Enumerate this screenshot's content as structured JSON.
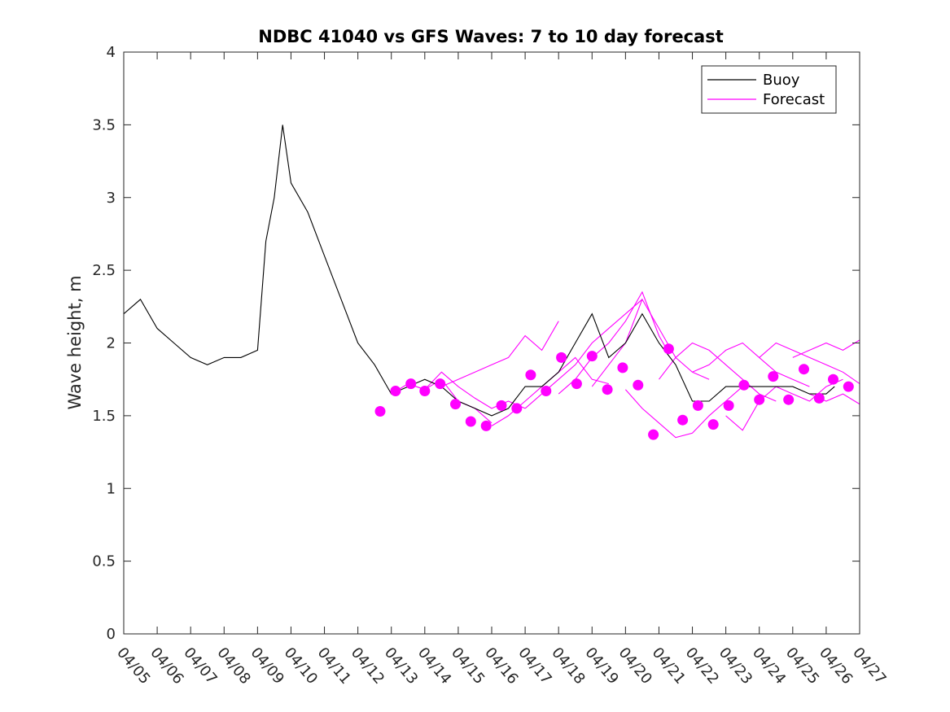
{
  "chart_data": {
    "type": "line",
    "title": "NDBC 41040 vs GFS Waves: 7 to 10 day forecast",
    "xlabel": "",
    "ylabel": "Wave height, m",
    "ylim": [
      0,
      4
    ],
    "xlim": [
      "04/05",
      "04/27"
    ],
    "x_tick_labels": [
      "04/05",
      "04/06",
      "04/07",
      "04/08",
      "04/09",
      "04/10",
      "04/11",
      "04/12",
      "04/13",
      "04/14",
      "04/15",
      "04/16",
      "04/17",
      "04/18",
      "04/19",
      "04/20",
      "04/21",
      "04/22",
      "04/23",
      "04/24",
      "04/25",
      "04/26",
      "04/27"
    ],
    "y_tick_labels": [
      "0",
      "0.5",
      "1",
      "1.5",
      "2",
      "2.5",
      "3",
      "3.5",
      "4"
    ],
    "y_ticks": [
      0,
      0.5,
      1,
      1.5,
      2,
      2.5,
      3,
      3.5,
      4
    ],
    "grid": false,
    "legend_position": "top-right",
    "colors": {
      "buoy": "#000000",
      "forecast": "#ff00ff"
    },
    "series": [
      {
        "name": "Buoy",
        "style": "line",
        "x": [
          "04/05 00:00",
          "04/05 12:00",
          "04/06 00:00",
          "04/06 12:00",
          "04/07 00:00",
          "04/07 12:00",
          "04/08 00:00",
          "04/08 12:00",
          "04/09 00:00",
          "04/09 06:00",
          "04/09 12:00",
          "04/09 18:00",
          "04/10 00:00",
          "04/10 12:00",
          "04/11 00:00",
          "04/11 12:00",
          "04/12 00:00",
          "04/12 12:00",
          "04/13 00:00",
          "04/13 12:00",
          "04/14 00:00",
          "04/14 12:00",
          "04/15 00:00",
          "04/15 12:00",
          "04/16 00:00",
          "04/16 12:00",
          "04/17 00:00",
          "04/17 12:00",
          "04/18 00:00",
          "04/18 12:00",
          "04/19 00:00",
          "04/19 12:00",
          "04/20 00:00",
          "04/20 12:00",
          "04/21 00:00",
          "04/21 12:00",
          "04/22 00:00",
          "04/22 12:00",
          "04/23 00:00",
          "04/23 12:00",
          "04/24 00:00",
          "04/24 12:00",
          "04/25 00:00",
          "04/25 12:00",
          "04/26 00:00",
          "04/26 06:00"
        ],
        "values": [
          2.2,
          2.3,
          2.1,
          2.0,
          1.9,
          1.85,
          1.9,
          1.9,
          1.95,
          2.7,
          3.0,
          3.5,
          3.1,
          2.9,
          2.6,
          2.3,
          2.0,
          1.85,
          1.65,
          1.7,
          1.75,
          1.7,
          1.6,
          1.55,
          1.5,
          1.55,
          1.7,
          1.7,
          1.8,
          2.0,
          2.2,
          1.9,
          2.0,
          2.2,
          2.0,
          1.85,
          1.6,
          1.6,
          1.7,
          1.7,
          1.7,
          1.7,
          1.7,
          1.65,
          1.65,
          1.7
        ]
      },
      {
        "name": "Forecast",
        "style": "markers",
        "x": [
          "04/12 16:00",
          "04/13 03:00",
          "04/13 14:00",
          "04/14 00:00",
          "04/14 11:00",
          "04/14 22:00",
          "04/15 09:00",
          "04/15 20:00",
          "04/16 07:00",
          "04/16 18:00",
          "04/17 04:00",
          "04/17 15:00",
          "04/18 02:00",
          "04/18 13:00",
          "04/19 00:00",
          "04/19 11:00",
          "04/19 22:00",
          "04/20 09:00",
          "04/20 20:00",
          "04/21 07:00",
          "04/21 17:00",
          "04/22 04:00",
          "04/22 15:00",
          "04/23 02:00",
          "04/23 13:00",
          "04/24 00:00",
          "04/24 10:00",
          "04/24 21:00",
          "04/25 08:00",
          "04/25 19:00",
          "04/26 05:00",
          "04/26 16:00"
        ],
        "values": [
          1.53,
          1.67,
          1.72,
          1.67,
          1.72,
          1.58,
          1.46,
          1.43,
          1.57,
          1.55,
          1.78,
          1.67,
          1.9,
          1.72,
          1.91,
          1.68,
          1.83,
          1.71,
          1.37,
          1.96,
          1.47,
          1.57,
          1.44,
          1.57,
          1.71,
          1.61,
          1.77,
          1.61,
          1.82,
          1.62,
          1.75,
          1.7
        ]
      }
    ],
    "forecast_traces": [
      {
        "x": [
          "04/13 00:00",
          "04/13 12:00",
          "04/14 00:00",
          "04/14 12:00",
          "04/15 00:00",
          "04/15 12:00",
          "04/16 00:00"
        ],
        "values": [
          1.65,
          1.72,
          1.68,
          1.75,
          1.6,
          1.55,
          1.45
        ]
      },
      {
        "x": [
          "04/13 12:00",
          "04/14 00:00",
          "04/14 12:00",
          "04/15 00:00",
          "04/15 12:00",
          "04/16 00:00",
          "04/16 12:00",
          "04/17 00:00"
        ],
        "values": [
          1.72,
          1.68,
          1.8,
          1.7,
          1.62,
          1.55,
          1.6,
          1.55
        ]
      },
      {
        "x": [
          "04/14 12:00",
          "04/15 00:00",
          "04/15 12:00",
          "04/16 00:00",
          "04/16 12:00",
          "04/17 00:00",
          "04/17 12:00",
          "04/18 00:00"
        ],
        "values": [
          1.7,
          1.75,
          1.8,
          1.85,
          1.9,
          2.05,
          1.95,
          2.15
        ]
      },
      {
        "x": [
          "04/16 00:00",
          "04/16 12:00",
          "04/17 00:00",
          "04/17 12:00",
          "04/18 00:00",
          "04/18 12:00",
          "04/19 00:00",
          "04/19 12:00"
        ],
        "values": [
          1.43,
          1.5,
          1.6,
          1.7,
          1.8,
          1.9,
          1.75,
          1.72
        ]
      },
      {
        "x": [
          "04/17 00:00",
          "04/17 12:00",
          "04/18 00:00",
          "04/18 12:00",
          "04/19 00:00",
          "04/19 12:00",
          "04/20 00:00",
          "04/20 12:00"
        ],
        "values": [
          1.55,
          1.65,
          1.75,
          1.85,
          2.0,
          2.1,
          2.2,
          2.3
        ]
      },
      {
        "x": [
          "04/18 00:00",
          "04/18 12:00",
          "04/19 00:00",
          "04/19 12:00",
          "04/20 00:00",
          "04/20 12:00",
          "04/21 00:00",
          "04/21 06:00"
        ],
        "values": [
          1.65,
          1.75,
          1.9,
          2.0,
          2.15,
          2.35,
          2.05,
          1.95
        ]
      },
      {
        "x": [
          "04/19 00:00",
          "04/19 12:00",
          "04/20 00:00",
          "04/20 12:00",
          "04/21 00:00",
          "04/21 12:00",
          "04/22 00:00",
          "04/22 12:00"
        ],
        "values": [
          1.7,
          1.85,
          2.0,
          2.3,
          2.1,
          1.9,
          1.8,
          1.75
        ]
      },
      {
        "x": [
          "04/20 00:00",
          "04/20 12:00",
          "04/21 00:00",
          "04/21 12:00",
          "04/22 00:00",
          "04/22 12:00",
          "04/23 00:00",
          "04/23 12:00"
        ],
        "values": [
          1.68,
          1.55,
          1.45,
          1.35,
          1.38,
          1.5,
          1.6,
          1.7
        ]
      },
      {
        "x": [
          "04/21 00:00",
          "04/21 12:00",
          "04/22 00:00",
          "04/22 12:00",
          "04/23 00:00",
          "04/23 12:00",
          "04/24 00:00",
          "04/24 12:00"
        ],
        "values": [
          1.75,
          1.9,
          2.0,
          1.95,
          1.85,
          1.75,
          1.65,
          1.6
        ]
      },
      {
        "x": [
          "04/22 00:00",
          "04/22 12:00",
          "04/23 00:00",
          "04/23 12:00",
          "04/24 00:00",
          "04/24 12:00",
          "04/25 00:00",
          "04/25 12:00"
        ],
        "values": [
          1.8,
          1.85,
          1.95,
          2.0,
          1.9,
          1.8,
          1.75,
          1.7
        ]
      },
      {
        "x": [
          "04/23 00:00",
          "04/23 12:00",
          "04/24 00:00",
          "04/24 12:00",
          "04/25 00:00",
          "04/25 12:00",
          "04/26 00:00",
          "04/26 12:00"
        ],
        "values": [
          1.5,
          1.4,
          1.6,
          1.7,
          1.65,
          1.6,
          1.7,
          1.75
        ]
      },
      {
        "x": [
          "04/24 00:00",
          "04/24 12:00",
          "04/25 00:00",
          "04/25 12:00",
          "04/26 00:00",
          "04/26 12:00",
          "04/27 00:00"
        ],
        "values": [
          1.9,
          2.0,
          1.95,
          1.9,
          1.85,
          1.8,
          1.72
        ]
      },
      {
        "x": [
          "04/25 00:00",
          "04/25 12:00",
          "04/26 00:00",
          "04/26 12:00",
          "04/27 00:00"
        ],
        "values": [
          1.9,
          1.95,
          2.0,
          1.95,
          2.02
        ]
      },
      {
        "x": [
          "04/25 12:00",
          "04/26 00:00",
          "04/26 12:00",
          "04/27 00:00"
        ],
        "values": [
          1.65,
          1.6,
          1.65,
          1.58
        ]
      }
    ]
  }
}
